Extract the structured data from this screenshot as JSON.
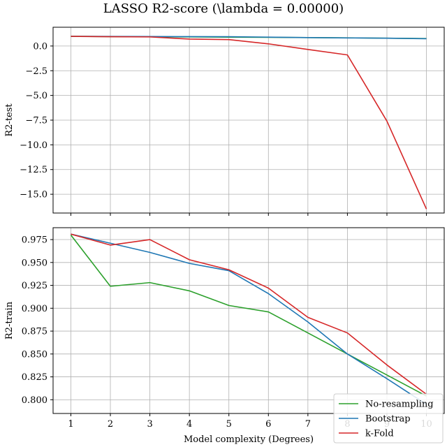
{
  "figure": {
    "title": "LASSO R2-score (\\lambda = 0.00000)",
    "xlabel": "Model complexity (Degrees)"
  },
  "colors": {
    "no_resampling": "#2ca02c",
    "bootstrap": "#1f77b4",
    "kfold": "#d62728",
    "grid": "#b0b0b0"
  },
  "chart_data": [
    {
      "type": "line",
      "ylabel": "R2-test",
      "x": [
        1,
        2,
        3,
        4,
        5,
        6,
        7,
        8,
        9,
        10
      ],
      "xlim": [
        0.55,
        10.45
      ],
      "ylim": [
        -16.9,
        1.9
      ],
      "yticks": [
        0.0,
        -2.5,
        -5.0,
        -7.5,
        -10.0,
        -12.5,
        -15.0
      ],
      "ytick_labels": [
        "0.0",
        "−2.5",
        "−5.0",
        "−7.5",
        "−10.0",
        "−12.5",
        "−15.0"
      ],
      "xtick_labels_visible": false,
      "grid": true,
      "series": [
        {
          "key": "no_resampling",
          "values": [
            0.98,
            0.95,
            0.93,
            0.92,
            0.9,
            0.88,
            0.85,
            0.83,
            0.79,
            0.76
          ]
        },
        {
          "key": "bootstrap",
          "values": [
            0.98,
            0.97,
            0.96,
            0.95,
            0.94,
            0.9,
            0.85,
            0.82,
            0.79,
            0.74
          ]
        },
        {
          "key": "kfold",
          "values": [
            0.98,
            0.94,
            0.92,
            0.7,
            0.65,
            0.22,
            -0.35,
            -0.9,
            -7.6,
            -16.5
          ]
        }
      ]
    },
    {
      "type": "line",
      "ylabel": "R2-train",
      "x": [
        1,
        2,
        3,
        4,
        5,
        6,
        7,
        8,
        9,
        10
      ],
      "xlim": [
        0.55,
        10.45
      ],
      "ylim": [
        0.785,
        0.988
      ],
      "yticks": [
        0.975,
        0.95,
        0.925,
        0.9,
        0.875,
        0.85,
        0.825,
        0.8
      ],
      "ytick_labels": [
        "0.975",
        "0.950",
        "0.925",
        "0.900",
        "0.875",
        "0.850",
        "0.825",
        "0.800"
      ],
      "xticks": [
        1,
        2,
        3,
        4,
        5,
        6,
        7,
        8,
        9,
        10
      ],
      "xtick_labels": [
        "1",
        "2",
        "3",
        "4",
        "5",
        "6",
        "7",
        "8",
        "9",
        "10"
      ],
      "grid": true,
      "legend": "lower-right",
      "series": [
        {
          "key": "no_resampling",
          "name": "No-resampling",
          "values": [
            0.98,
            0.924,
            0.928,
            0.919,
            0.903,
            0.896,
            0.873,
            0.85,
            0.827,
            0.804
          ]
        },
        {
          "key": "bootstrap",
          "name": "Bootstrap",
          "values": [
            0.981,
            0.971,
            0.961,
            0.949,
            0.941,
            0.916,
            0.885,
            0.85,
            0.823,
            0.795
          ]
        },
        {
          "key": "kfold",
          "name": "k-Fold",
          "values": [
            0.981,
            0.969,
            0.975,
            0.953,
            0.942,
            0.922,
            0.89,
            0.873,
            0.838,
            0.806
          ]
        }
      ]
    }
  ]
}
